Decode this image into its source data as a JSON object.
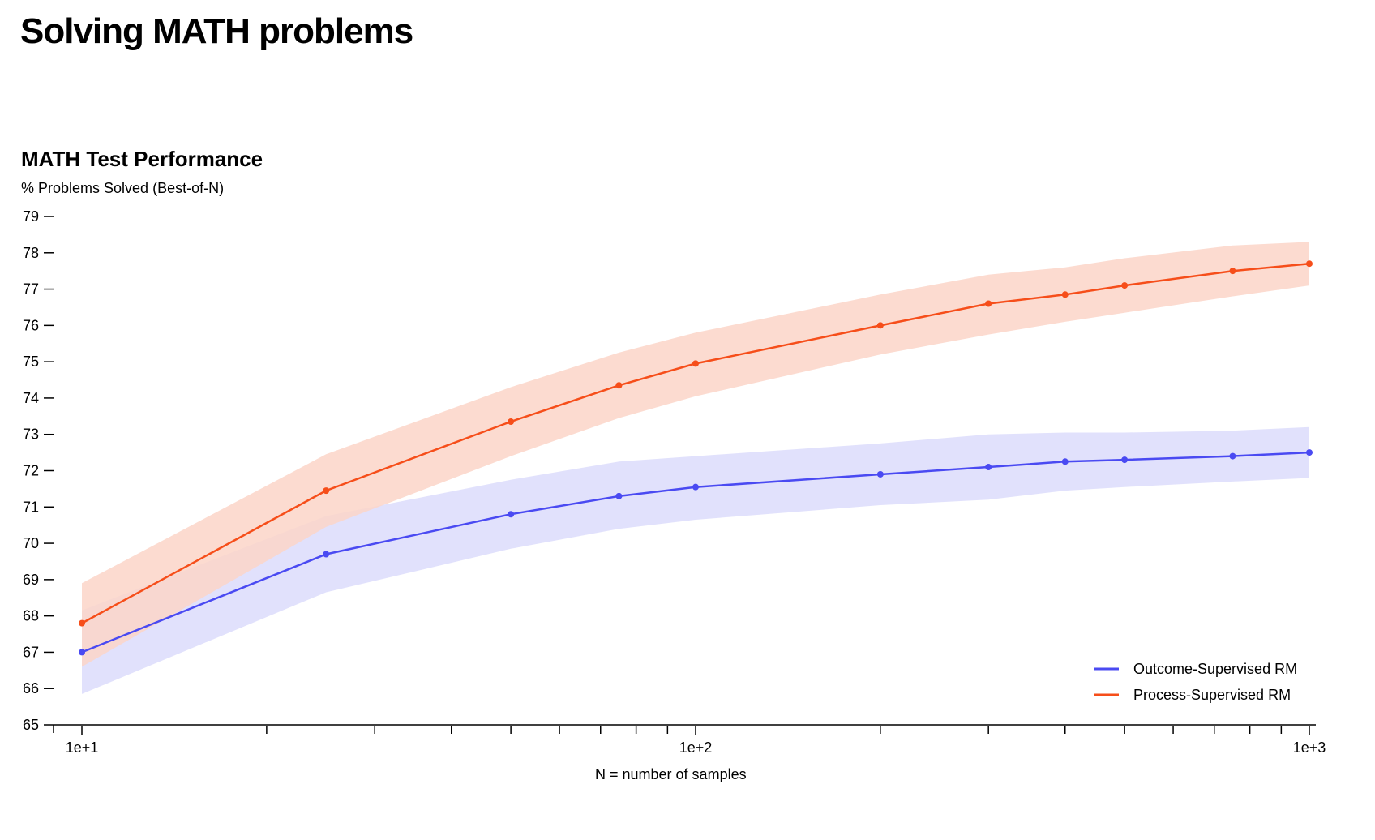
{
  "page": {
    "title": "Solving MATH problems"
  },
  "colors": {
    "outcome": "#4a4af2",
    "outcome_band": "#dcdcfb",
    "process": "#f64e1a",
    "process_band": "#fbd5c8"
  },
  "chart_data": {
    "type": "line",
    "title": "MATH Test Performance",
    "ylabel": "% Problems Solved (Best-of-N)",
    "xlabel": "N = number of samples",
    "xscale": "log",
    "xlim": [
      10,
      1000
    ],
    "ylim": [
      65,
      79
    ],
    "yticks": [
      65,
      66,
      67,
      68,
      69,
      70,
      71,
      72,
      73,
      74,
      75,
      76,
      77,
      78,
      79
    ],
    "xticks_major": [
      {
        "value": 10,
        "label": "1e+1"
      },
      {
        "value": 100,
        "label": "1e+2"
      },
      {
        "value": 1000,
        "label": "1e+3"
      }
    ],
    "xticks_minor": [
      20,
      30,
      40,
      50,
      60,
      70,
      80,
      90,
      200,
      300,
      400,
      500,
      600,
      700,
      800,
      900
    ],
    "legend_position": "bottom-right",
    "series": [
      {
        "name": "Outcome-Supervised RM",
        "color_key": "outcome",
        "x": [
          10,
          25,
          50,
          75,
          100,
          200,
          300,
          400,
          500,
          750,
          1000
        ],
        "y": [
          67.0,
          69.7,
          70.8,
          71.3,
          71.55,
          71.9,
          72.1,
          72.25,
          72.3,
          72.4,
          72.5
        ],
        "lower": [
          65.85,
          68.65,
          69.85,
          70.4,
          70.65,
          71.05,
          71.2,
          71.45,
          71.55,
          71.7,
          71.8
        ],
        "upper": [
          68.15,
          70.75,
          71.75,
          72.25,
          72.4,
          72.75,
          73.0,
          73.05,
          73.05,
          73.1,
          73.2
        ]
      },
      {
        "name": "Process-Supervised RM",
        "color_key": "process",
        "x": [
          10,
          25,
          50,
          75,
          100,
          200,
          300,
          400,
          500,
          750,
          1000
        ],
        "y": [
          67.8,
          71.45,
          73.35,
          74.35,
          74.95,
          76.0,
          76.6,
          76.85,
          77.1,
          77.5,
          77.7
        ],
        "lower": [
          66.6,
          70.45,
          72.4,
          73.45,
          74.05,
          75.2,
          75.75,
          76.1,
          76.35,
          76.8,
          77.1
        ],
        "upper": [
          68.9,
          72.45,
          74.3,
          75.25,
          75.8,
          76.85,
          77.4,
          77.6,
          77.85,
          78.2,
          78.3
        ]
      }
    ]
  }
}
